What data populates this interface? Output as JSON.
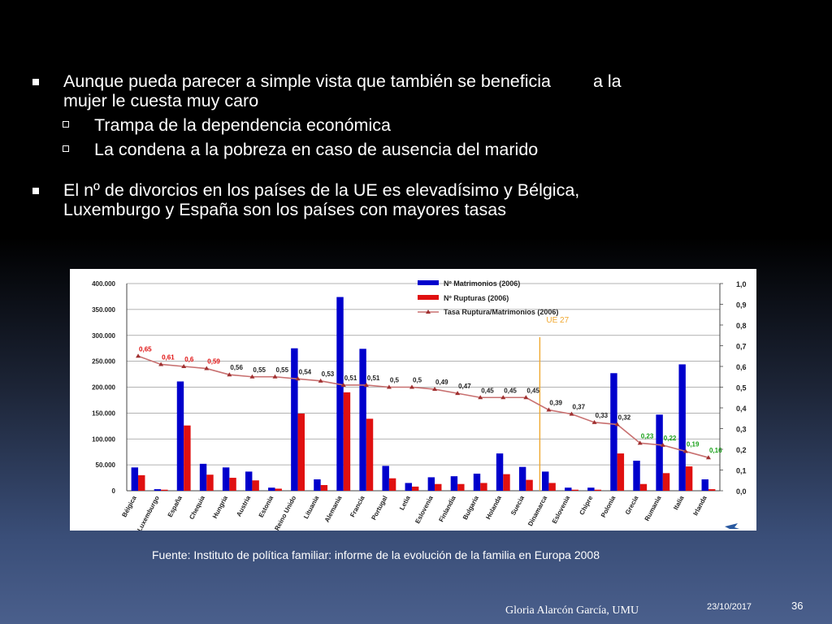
{
  "slide": {
    "bullets": [
      {
        "text_a": "Aunque pueda parecer a simple vista que también se beneficia",
        "text_b": "a la",
        "text_c": "mujer le cuesta muy caro",
        "sub": [
          "Trampa de la dependencia económica",
          "La condena a la pobreza en caso de ausencia del marido"
        ]
      },
      {
        "text_a": "El nº de divorcios en los países de la UE es elevadísimo y Bélgica,",
        "text_c": "Luxemburgo y España son los países con mayores tasas"
      }
    ],
    "source": "Fuente: Instituto de política familiar: informe de la evolución de la familia en Europa 2008",
    "footer": {
      "author": "Gloria Alarcón García,    UMU",
      "date": "23/10/2017",
      "page": "36"
    }
  },
  "colors": {
    "marriages": "#0000cc",
    "ruptures": "#e01010",
    "rate": "#c87070",
    "ue_line": "#f0a830"
  },
  "chart_data": {
    "type": "bar",
    "categories": [
      "Bélgica",
      "Luxemburgo",
      "España",
      "Chequia",
      "Hungria",
      "Austria",
      "Estonia",
      "Reino Unido",
      "Lituania",
      "Alemania",
      "Francia",
      "Portugal",
      "Letia",
      "Eslovenia",
      "Finlandia",
      "Bulgaria",
      "Holanda",
      "Suecia",
      "Dinamarca",
      "Eslovenia",
      "Chipre",
      "Polonia",
      "Grecia",
      "Rumania",
      "Italia",
      "Irlanda"
    ],
    "series": [
      {
        "name": "Nº Matrimonios (2006)",
        "axis": "left",
        "values": [
          45000,
          3000,
          211000,
          52000,
          45000,
          37000,
          6000,
          275000,
          22000,
          374000,
          274000,
          48000,
          15000,
          26000,
          28000,
          33000,
          72000,
          46000,
          37000,
          6000,
          6000,
          227000,
          58000,
          147000,
          244000,
          22000
        ]
      },
      {
        "name": "Nº Rupturas (2006)",
        "axis": "left",
        "values": [
          30000,
          2000,
          126000,
          31000,
          25000,
          20000,
          4000,
          149000,
          11000,
          190000,
          139000,
          24000,
          8000,
          13000,
          13000,
          15000,
          32000,
          21000,
          15000,
          2000,
          2000,
          72000,
          13000,
          34000,
          47000,
          3000
        ]
      },
      {
        "name": "Tasa Ruptura/Matrimonios (2006)",
        "axis": "right",
        "type": "line",
        "values": [
          0.65,
          0.61,
          0.6,
          0.59,
          0.56,
          0.55,
          0.55,
          0.54,
          0.53,
          0.51,
          0.51,
          0.5,
          0.5,
          0.49,
          0.47,
          0.45,
          0.45,
          0.45,
          0.39,
          0.37,
          0.33,
          0.32,
          0.23,
          0.22,
          0.19,
          0.16
        ]
      }
    ],
    "rate_labels": [
      "0,65",
      "0,61",
      "0,6",
      "0,59",
      "0,56",
      "0,55",
      "0,55",
      "0,54",
      "0,53",
      "0,51",
      "0,51",
      "0,5",
      "0,5",
      "0,49",
      "0,47",
      "0,45",
      "0,45",
      "0,45",
      "0,39",
      "0,37",
      "0,33",
      "0,32",
      "0,23",
      "0,22",
      "0,19",
      "0,16"
    ],
    "rate_label_colors": [
      "#e01010",
      "#e01010",
      "#e01010",
      "#e01010",
      "#222222",
      "#222222",
      "#222222",
      "#222222",
      "#222222",
      "#222222",
      "#222222",
      "#222222",
      "#222222",
      "#222222",
      "#222222",
      "#222222",
      "#222222",
      "#222222",
      "#222222",
      "#222222",
      "#222222",
      "#222222",
      "#18a018",
      "#18a018",
      "#18a018",
      "#18a018"
    ],
    "left_ticks": [
      "0",
      "50.000",
      "100.000",
      "150.000",
      "200.000",
      "250.000",
      "300.000",
      "350.000",
      "400.000"
    ],
    "right_ticks": [
      "0,0",
      "0,1",
      "0,2",
      "0,3",
      "0,4",
      "0,5",
      "0,6",
      "0,7",
      "0,8",
      "0,9",
      "1,0"
    ],
    "ylim_left": [
      0,
      400000
    ],
    "ylim_right": [
      0,
      1.0
    ],
    "annotation": {
      "text": "UE 27",
      "after_category_index": 17
    },
    "grid": true,
    "legend_position": "top-center"
  }
}
